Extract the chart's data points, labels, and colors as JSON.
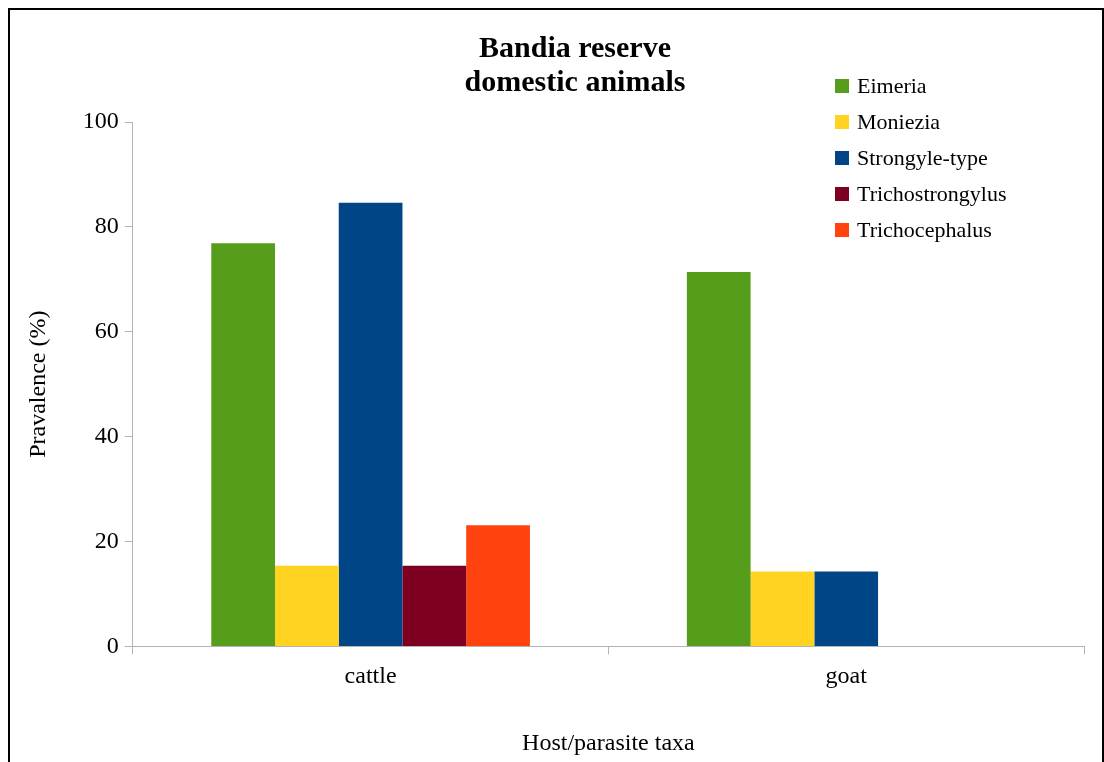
{
  "chart_data": {
    "type": "bar",
    "title": "Bandia reserve domestic animals",
    "xlabel": "Host/parasite taxa",
    "ylabel": "Pravalence (%)",
    "categories": [
      "cattle",
      "goat"
    ],
    "series": [
      {
        "name": "Eimeria",
        "color": "#579d1c",
        "values": [
          76.9,
          71.4
        ]
      },
      {
        "name": "Moniezia",
        "color": "#ffd320",
        "values": [
          15.4,
          14.3
        ]
      },
      {
        "name": "Strongyle-type",
        "color": "#004586",
        "values": [
          84.6,
          14.3
        ]
      },
      {
        "name": "Trichostrongylus",
        "color": "#7e0021",
        "values": [
          15.4,
          null
        ]
      },
      {
        "name": "Trichocephalus",
        "color": "#ff420e",
        "values": [
          23.1,
          null
        ]
      }
    ],
    "ylim": [
      0,
      100
    ],
    "yticks": [
      0,
      20,
      40,
      60,
      80,
      100
    ],
    "grid": false,
    "legend": "top right"
  }
}
